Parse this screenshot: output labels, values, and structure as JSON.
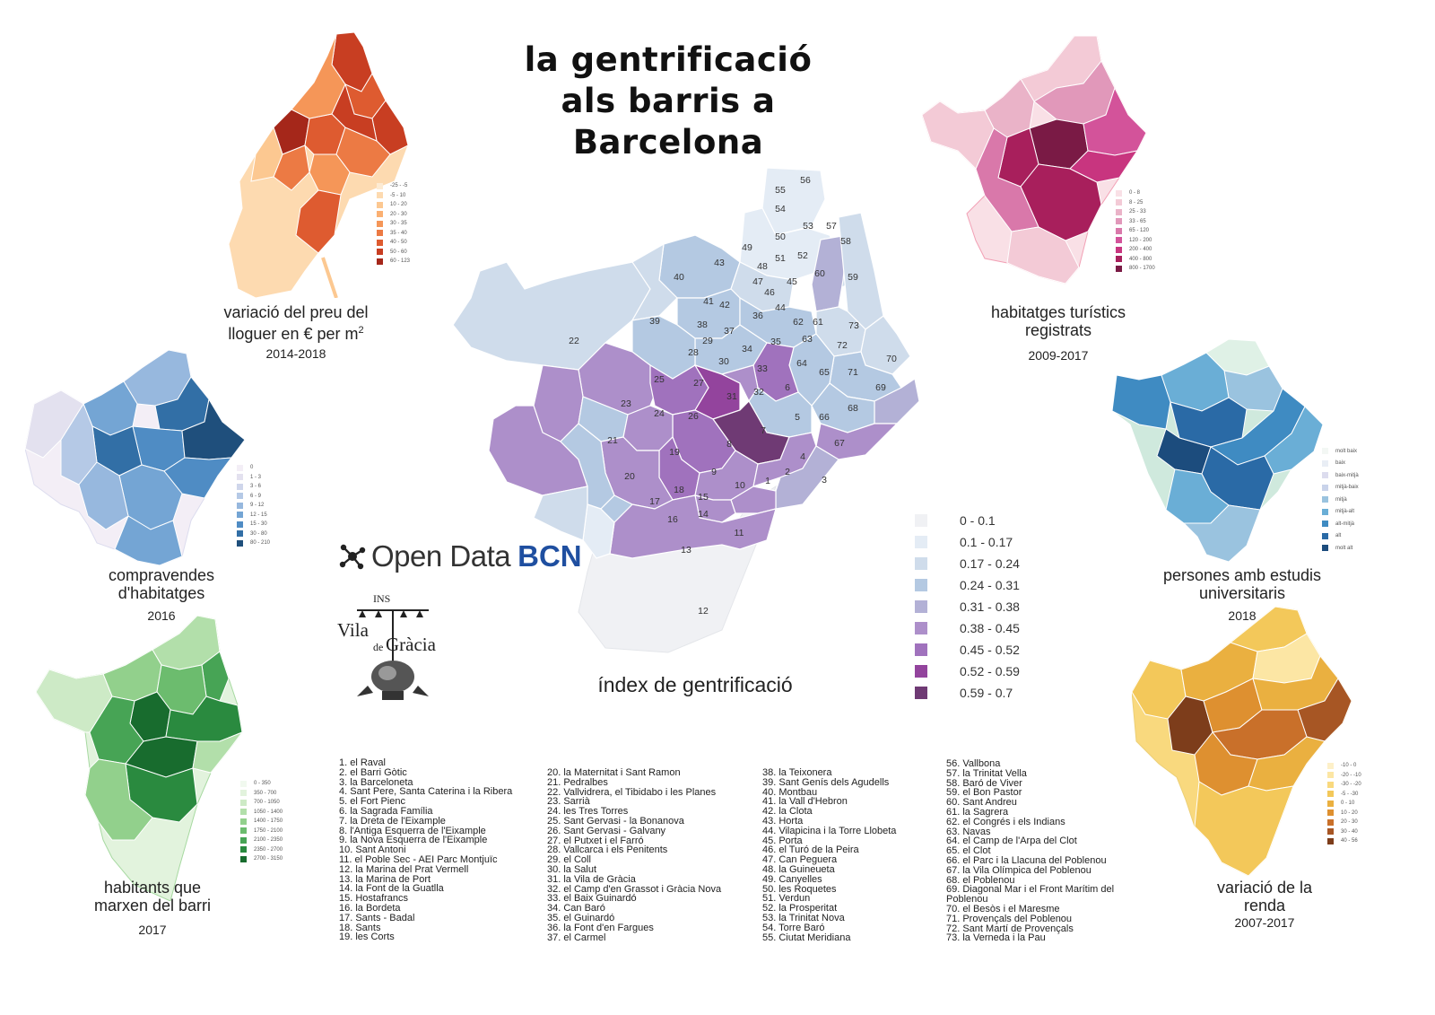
{
  "title_lines": [
    "la gentrificació",
    "als barris a",
    "Barcelona"
  ],
  "maps": {
    "rent": {
      "caption_main": "variació del preu del",
      "caption_line2": "lloguer en € per m",
      "caption_sup": "2",
      "year": "2014-2018",
      "legend": [
        {
          "label": "-25 - -5",
          "color": "#fdebd3"
        },
        {
          "label": "-5 - 10",
          "color": "#fddab0"
        },
        {
          "label": "10 - 20",
          "color": "#fcc891"
        },
        {
          "label": "20 - 30",
          "color": "#fbb072"
        },
        {
          "label": "30 - 35",
          "color": "#f59658"
        },
        {
          "label": "35 - 40",
          "color": "#ec7a44"
        },
        {
          "label": "40 - 50",
          "color": "#de5b30"
        },
        {
          "label": "50 - 60",
          "color": "#c83e22"
        },
        {
          "label": "60 - 123",
          "color": "#a5271a"
        }
      ]
    },
    "tourist": {
      "caption": [
        "habitatges turístics",
        "registrats"
      ],
      "year": "2009-2017",
      "legend": [
        {
          "label": "0 - 8",
          "color": "#f9e0e6"
        },
        {
          "label": "8 - 25",
          "color": "#f3cad6"
        },
        {
          "label": "25 - 33",
          "color": "#eab3c8"
        },
        {
          "label": "33 - 65",
          "color": "#e198ba"
        },
        {
          "label": "65 - 120",
          "color": "#d978aa"
        },
        {
          "label": "120 - 200",
          "color": "#d3539a"
        },
        {
          "label": "200 - 400",
          "color": "#c8357f"
        },
        {
          "label": "400 - 800",
          "color": "#a81f5c"
        },
        {
          "label": "800 - 1700",
          "color": "#7a1a45"
        }
      ]
    },
    "sales": {
      "caption": [
        "compravendes",
        "d'habitatges"
      ],
      "year": "2016",
      "legend": [
        {
          "label": "0",
          "color": "#f3eef6"
        },
        {
          "label": "1 - 3",
          "color": "#e3e1ef"
        },
        {
          "label": "3 - 6",
          "color": "#cfd6eb"
        },
        {
          "label": "6 - 9",
          "color": "#b5c9e6"
        },
        {
          "label": "9 - 12",
          "color": "#97b8de"
        },
        {
          "label": "12 - 15",
          "color": "#74a5d4"
        },
        {
          "label": "15 - 30",
          "color": "#4f8cc4"
        },
        {
          "label": "30 - 80",
          "color": "#326fa6"
        },
        {
          "label": "80 - 210",
          "color": "#1f4f7c"
        }
      ]
    },
    "university": {
      "caption": [
        "persones amb estudis",
        "universitaris"
      ],
      "year": "2018",
      "legend": [
        {
          "label": "molt baix",
          "color": "#f3f7f4"
        },
        {
          "label": "baix",
          "color": "#e9eef5"
        },
        {
          "label": "baix-mitjà",
          "color": "#dcdcee"
        },
        {
          "label": "mitjà-baix",
          "color": "#c9d3ea"
        },
        {
          "label": "mitjà",
          "color": "#9ac3df"
        },
        {
          "label": "mitjà-alt",
          "color": "#6aaed6"
        },
        {
          "label": "alt-mitjà",
          "color": "#3f8bc2"
        },
        {
          "label": "alt",
          "color": "#2a6aa6"
        },
        {
          "label": "molt alt",
          "color": "#1c4c7d"
        }
      ]
    },
    "leave": {
      "caption": [
        "habitants que",
        "marxen del barri"
      ],
      "year": "2017",
      "legend": [
        {
          "label": "0 - 350",
          "color": "#f1f9ef"
        },
        {
          "label": "350 - 700",
          "color": "#e2f3dd"
        },
        {
          "label": "700 - 1050",
          "color": "#cdeac6"
        },
        {
          "label": "1050 - 1400",
          "color": "#b2dfaa"
        },
        {
          "label": "1400 - 1750",
          "color": "#92d08c"
        },
        {
          "label": "1750 - 2100",
          "color": "#6cbc6e"
        },
        {
          "label": "2100 - 2350",
          "color": "#47a455"
        },
        {
          "label": "2350 - 2700",
          "color": "#2a8a3f"
        },
        {
          "label": "2700 - 3150",
          "color": "#186c2e"
        }
      ]
    },
    "income": {
      "caption": [
        "variació de la",
        "renda"
      ],
      "year": "2007-2017",
      "legend": [
        {
          "label": "-10 - 0",
          "color": "#fdf0c8"
        },
        {
          "label": "-20 - -10",
          "color": "#fce6a4"
        },
        {
          "label": "-30 - -20",
          "color": "#f9d97e"
        },
        {
          "label": "-5 - -30",
          "color": "#f3c85a"
        },
        {
          "label": "0 - 10",
          "color": "#eab040"
        },
        {
          "label": "10 - 20",
          "color": "#de9030"
        },
        {
          "label": "20 - 30",
          "color": "#c9702a"
        },
        {
          "label": "30 - 40",
          "color": "#a75624"
        },
        {
          "label": "40 - 56",
          "color": "#7d3d1b"
        }
      ]
    }
  },
  "main_map": {
    "title": "índex de gentrificació",
    "legend": [
      {
        "label": "0 - 0.1",
        "color": "#f0f1f4"
      },
      {
        "label": "0.1 - 0.17",
        "color": "#e4ecf5"
      },
      {
        "label": "0.17 - 0.24",
        "color": "#cfdceb"
      },
      {
        "label": "0.24 - 0.31",
        "color": "#b4c9e2"
      },
      {
        "label": "0.31 - 0.38",
        "color": "#b3b1d6"
      },
      {
        "label": "0.38 - 0.45",
        "color": "#ad8fca"
      },
      {
        "label": "0.45 - 0.52",
        "color": "#a072bd"
      },
      {
        "label": "0.52 - 0.59",
        "color": "#93449d"
      },
      {
        "label": "0.59 - 0.7",
        "color": "#6f3a74"
      }
    ]
  },
  "logos": {
    "open_data_1": "Open Data",
    "open_data_2": "BCN",
    "ins": "INS",
    "vila": "Vila",
    "de": "de",
    "gracia": "Gràcia"
  },
  "barris": {
    "col1": [
      "1. el Raval",
      "2. el Barri Gòtic",
      "3. la Barceloneta",
      "4. Sant Pere, Santa Caterina i la Ribera",
      "5. el Fort Pienc",
      "6. la Sagrada Família",
      "7. la Dreta de l'Eixample",
      "8. l'Antiga Esquerra de l'Eixample",
      "9. la Nova Esquerra de l'Eixample",
      "10. Sant Antoni",
      "11. el Poble Sec - AEI Parc Montjuïc",
      "12. la Marina del Prat Vermell",
      "13. la Marina de Port",
      "14. la Font de la Guatlla",
      "15. Hostafrancs",
      "16. la Bordeta",
      "17. Sants - Badal",
      "18. Sants",
      "19. les Corts"
    ],
    "col2": [
      "20. la Maternitat i Sant Ramon",
      "21. Pedralbes",
      "22. Vallvidrera, el Tibidabo i les Planes",
      "23. Sarrià",
      "24. les Tres Torres",
      "25. Sant Gervasi - la Bonanova",
      "26. Sant Gervasi - Galvany",
      "27. el Putxet i el Farró",
      "28. Vallcarca i els Penitents",
      "29. el Coll",
      "30. la Salut",
      "31. la Vila de Gràcia",
      "32. el Camp d'en Grassot i Gràcia Nova",
      "33. el Baix Guinardó",
      "34. Can Baró",
      "35. el Guinardó",
      "36. la Font d'en Fargues",
      "37. el Carmel"
    ],
    "col3": [
      "38. la Teixonera",
      "39. Sant Genís dels Agudells",
      "40. Montbau",
      "41. la Vall d'Hebron",
      "42. la Clota",
      "43. Horta",
      "44. Vilapicina i la Torre Llobeta",
      "45. Porta",
      "46. el Turó de la Peira",
      "47. Can Peguera",
      "48. la Guineueta",
      "49. Canyelles",
      "50. les Roquetes",
      "51. Verdun",
      "52. la Prosperitat",
      "53. la Trinitat Nova",
      "54. Torre Baró",
      "55. Ciutat Meridiana"
    ],
    "col4": [
      "56. Vallbona",
      "57. la Trinitat Vella",
      "58. Baró de Viver",
      "59. el Bon Pastor",
      "60. Sant Andreu",
      "61. la Sagrera",
      "62. el Congrés i els Indians",
      "63. Navas",
      "64. el Camp de l'Arpa del Clot",
      "65. el Clot",
      "66. el Parc i la Llacuna del Poblenou",
      "67. la Vila Olímpica del Poblenou",
      "68. el Poblenou",
      "69. Diagonal Mar i el Front Marítim del",
      "Poblenou",
      "70. el Besòs i el Maresme",
      "71. Provençals del Poblenou",
      "72. Sant Martí de Provençals",
      "73. la Verneda i la Pau"
    ]
  },
  "main_numbers": [
    "1",
    "2",
    "3",
    "4",
    "5",
    "6",
    "7",
    "8",
    "9",
    "10",
    "11",
    "12",
    "13",
    "14",
    "15",
    "16",
    "17",
    "18",
    "19",
    "20",
    "21",
    "22",
    "23",
    "24",
    "25",
    "26",
    "27",
    "28",
    "29",
    "30",
    "31",
    "32",
    "33",
    "34",
    "35",
    "36",
    "37",
    "38",
    "39",
    "40",
    "41",
    "42",
    "43",
    "44",
    "45",
    "46",
    "47",
    "48",
    "49",
    "50",
    "51",
    "52",
    "53",
    "54",
    "55",
    "56",
    "57",
    "58",
    "59",
    "60",
    "61",
    "62",
    "63",
    "64",
    "65",
    "66",
    "67",
    "68",
    "69",
    "70",
    "71",
    "72",
    "73"
  ]
}
